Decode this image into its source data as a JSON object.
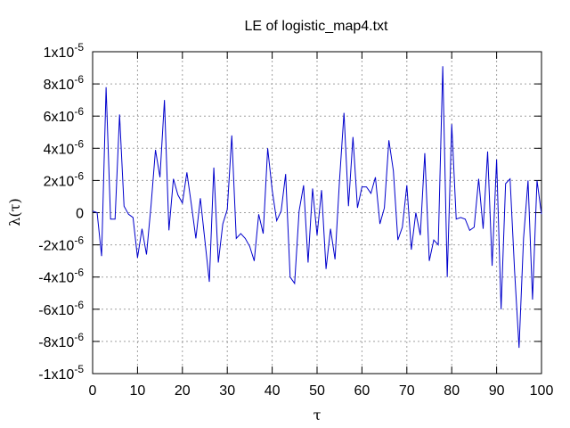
{
  "chart_data": {
    "type": "line",
    "title": "LE of logistic_map4.txt",
    "xlabel": "τ",
    "ylabel": "λ(τ)",
    "xlim": [
      0,
      100
    ],
    "ylim": [
      -1e-05,
      1e-05
    ],
    "grid": true,
    "x_ticks": [
      {
        "value": 0,
        "label": "0"
      },
      {
        "value": 10,
        "label": "10"
      },
      {
        "value": 20,
        "label": "20"
      },
      {
        "value": 30,
        "label": "30"
      },
      {
        "value": 40,
        "label": "40"
      },
      {
        "value": 50,
        "label": "50"
      },
      {
        "value": 60,
        "label": "60"
      },
      {
        "value": 70,
        "label": "70"
      },
      {
        "value": 80,
        "label": "80"
      },
      {
        "value": 90,
        "label": "90"
      },
      {
        "value": 100,
        "label": "100"
      }
    ],
    "y_ticks": [
      {
        "value": 1e-05,
        "mantissa": "1",
        "exponent": "-5"
      },
      {
        "value": 8e-06,
        "mantissa": "8",
        "exponent": "-6"
      },
      {
        "value": 6e-06,
        "mantissa": "6",
        "exponent": "-6"
      },
      {
        "value": 4e-06,
        "mantissa": "4",
        "exponent": "-6"
      },
      {
        "value": 2e-06,
        "mantissa": "2",
        "exponent": "-6"
      },
      {
        "value": 0,
        "mantissa": "0",
        "exponent": ""
      },
      {
        "value": -2e-06,
        "mantissa": "-2",
        "exponent": "-6"
      },
      {
        "value": -4e-06,
        "mantissa": "-4",
        "exponent": "-6"
      },
      {
        "value": -6e-06,
        "mantissa": "-6",
        "exponent": "-6"
      },
      {
        "value": -8e-06,
        "mantissa": "-8",
        "exponent": "-6"
      },
      {
        "value": -1e-05,
        "mantissa": "-1",
        "exponent": "-5"
      }
    ],
    "line_color": "#0000cc",
    "x": [
      0,
      1,
      2,
      3,
      4,
      5,
      6,
      7,
      8,
      9,
      10,
      11,
      12,
      13,
      14,
      15,
      16,
      17,
      18,
      19,
      20,
      21,
      22,
      23,
      24,
      25,
      26,
      27,
      28,
      29,
      30,
      31,
      32,
      33,
      34,
      35,
      36,
      37,
      38,
      39,
      40,
      41,
      42,
      43,
      44,
      45,
      46,
      47,
      48,
      49,
      50,
      51,
      52,
      53,
      54,
      55,
      56,
      57,
      58,
      59,
      60,
      61,
      62,
      63,
      64,
      65,
      66,
      67,
      68,
      69,
      70,
      71,
      72,
      73,
      74,
      75,
      76,
      77,
      78,
      79,
      80,
      81,
      82,
      83,
      84,
      85,
      86,
      87,
      88,
      89,
      90,
      91,
      92,
      93,
      94,
      95,
      96,
      97,
      98,
      99,
      100
    ],
    "y": [
      1e-07,
      0,
      -2.7e-06,
      7.8e-06,
      -4e-07,
      -4e-07,
      6.1e-06,
      4e-07,
      -1e-07,
      -3e-07,
      -2.8e-06,
      -1e-06,
      -2.6e-06,
      4e-07,
      3.9e-06,
      2.2e-06,
      7e-06,
      -1.1e-06,
      2.1e-06,
      1.1e-06,
      6e-07,
      2.5e-06,
      5e-07,
      -1.6e-06,
      9e-07,
      -1.7e-06,
      -4.3e-06,
      2.8e-06,
      -3.1e-06,
      -7e-07,
      2e-07,
      4.8e-06,
      -1.6e-06,
      -1.3e-06,
      -1.6e-06,
      -2.1e-06,
      -3e-06,
      -1e-07,
      -1.3e-06,
      4e-06,
      1.4e-06,
      -5e-07,
      1e-07,
      2.4e-06,
      -4e-06,
      -4.4e-06,
      1e-07,
      1.7e-06,
      -3.1e-06,
      1.5e-06,
      -1.4e-06,
      1.4e-06,
      -3.5e-06,
      -1e-06,
      -2.9e-06,
      2e-06,
      6.2e-06,
      4e-07,
      4.7e-06,
      3e-07,
      1.6e-06,
      1.6e-06,
      1.2e-06,
      2.2e-06,
      -7e-07,
      3e-07,
      4.5e-06,
      2.6e-06,
      -1.7e-06,
      -9e-07,
      1.7e-06,
      -2.3e-06,
      0,
      -1.4e-06,
      3.7e-06,
      -3e-06,
      -1.7e-06,
      -2e-06,
      9.1e-06,
      -4e-06,
      5.5e-06,
      -4e-07,
      -3e-07,
      -4e-07,
      -1.1e-06,
      -9e-07,
      2.1e-06,
      -1e-06,
      3.8e-06,
      -3.3e-06,
      3.3e-06,
      -6e-06,
      1.8e-06,
      2.1e-06,
      -3.6e-06,
      -8.4e-06,
      -1.6e-06,
      2e-06,
      -5.4e-06,
      2e-06,
      -1e-07
    ]
  }
}
